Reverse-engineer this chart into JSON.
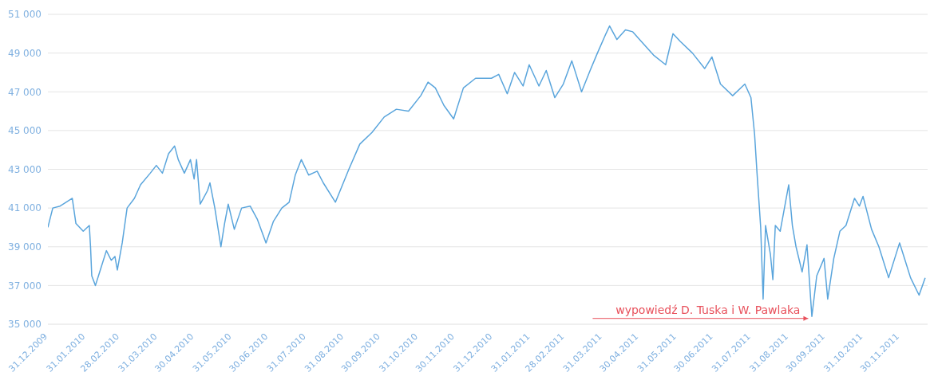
{
  "chart_data": {
    "type": "line",
    "x": [
      "2009-12-31",
      "2010-01-04",
      "2010-01-10",
      "2010-01-20",
      "2010-01-23",
      "2010-01-29",
      "2010-02-03",
      "2010-02-04",
      "2010-02-05",
      "2010-02-08",
      "2010-02-12",
      "2010-02-17",
      "2010-02-21",
      "2010-02-24",
      "2010-02-26",
      "2010-03-02",
      "2010-03-06",
      "2010-03-12",
      "2010-03-17",
      "2010-03-25",
      "2010-03-30",
      "2010-04-04",
      "2010-04-09",
      "2010-04-14",
      "2010-04-17",
      "2010-04-22",
      "2010-04-27",
      "2010-04-30",
      "2010-05-02",
      "2010-05-05",
      "2010-05-11",
      "2010-05-13",
      "2010-05-17",
      "2010-05-22",
      "2010-05-25",
      "2010-05-28",
      "2010-06-02",
      "2010-06-08",
      "2010-06-15",
      "2010-06-21",
      "2010-06-28",
      "2010-07-04",
      "2010-07-11",
      "2010-07-17",
      "2010-07-22",
      "2010-07-27",
      "2010-08-02",
      "2010-08-09",
      "2010-08-14",
      "2010-08-24",
      "2010-09-04",
      "2010-09-13",
      "2010-09-23",
      "2010-10-03",
      "2010-10-13",
      "2010-10-23",
      "2010-11-02",
      "2010-11-08",
      "2010-11-14",
      "2010-11-21",
      "2010-11-29",
      "2010-12-07",
      "2010-12-17",
      "2010-12-30",
      "2011-01-05",
      "2011-01-12",
      "2011-01-18",
      "2011-01-25",
      "2011-01-30",
      "2011-02-07",
      "2011-02-13",
      "2011-02-20",
      "2011-02-27",
      "2011-03-06",
      "2011-03-14",
      "2011-03-21",
      "2011-03-27",
      "2011-04-03",
      "2011-04-06",
      "2011-04-12",
      "2011-04-19",
      "2011-04-25",
      "2011-05-02",
      "2011-05-12",
      "2011-05-22",
      "2011-05-28",
      "2011-06-03",
      "2011-06-13",
      "2011-06-23",
      "2011-06-29",
      "2011-07-06",
      "2011-07-16",
      "2011-07-26",
      "2011-07-31",
      "2011-08-03",
      "2011-08-05",
      "2011-08-08",
      "2011-08-10",
      "2011-08-12",
      "2011-08-16",
      "2011-08-18",
      "2011-08-20",
      "2011-08-24",
      "2011-08-31",
      "2011-09-03",
      "2011-09-06",
      "2011-09-11",
      "2011-09-15",
      "2011-09-19",
      "2011-09-23",
      "2011-09-29",
      "2011-10-02",
      "2011-10-07",
      "2011-10-12",
      "2011-10-17",
      "2011-10-24",
      "2011-10-28",
      "2011-10-31",
      "2011-11-07",
      "2011-11-13",
      "2011-11-21",
      "2011-11-30",
      "2011-12-04",
      "2011-12-09",
      "2011-12-16",
      "2011-12-21"
    ],
    "series": [
      {
        "color": "#5aa5dc",
        "values": [
          40000,
          41000,
          41100,
          41500,
          40200,
          39800,
          40100,
          39000,
          37500,
          37000,
          37800,
          38800,
          38300,
          38500,
          37800,
          39200,
          41000,
          41500,
          42200,
          42800,
          43200,
          42800,
          43800,
          44200,
          43500,
          42800,
          43500,
          42500,
          43500,
          41200,
          41900,
          42300,
          41000,
          39000,
          40200,
          41200,
          39900,
          41000,
          41100,
          40400,
          39200,
          40300,
          41000,
          41300,
          42700,
          43500,
          42700,
          42900,
          42300,
          41300,
          43000,
          44300,
          44900,
          45700,
          46100,
          46000,
          46800,
          47500,
          47200,
          46300,
          45600,
          47200,
          47700,
          47700,
          47900,
          46900,
          48000,
          47300,
          48400,
          47300,
          48100,
          46700,
          47400,
          48600,
          47000,
          48100,
          49000,
          50000,
          50400,
          49700,
          50200,
          50100,
          49600,
          48900,
          48400,
          50000,
          49600,
          49000,
          48200,
          48800,
          47400,
          46800,
          47400,
          46700,
          44800,
          42800,
          40000,
          36300,
          40100,
          38600,
          37300,
          40100,
          39800,
          42200,
          40100,
          39000,
          37700,
          39100,
          35400,
          37500,
          38400,
          36300,
          38400,
          39800,
          40100,
          41500,
          41100,
          41600,
          39900,
          39000,
          37400,
          39200,
          38400,
          37400,
          36500,
          37400
        ]
      }
    ],
    "xlim": [
      "2009-12-31",
      "2011-12-23"
    ],
    "xticks": [
      {
        "value": "2009-12-31",
        "label": "31.12.2009"
      },
      {
        "value": "2010-01-31",
        "label": "31.01.2010"
      },
      {
        "value": "2010-02-28",
        "label": "28.02.2010"
      },
      {
        "value": "2010-03-31",
        "label": "31.03.2010"
      },
      {
        "value": "2010-04-30",
        "label": "30.04.2010"
      },
      {
        "value": "2010-05-31",
        "label": "31.05.2010"
      },
      {
        "value": "2010-06-30",
        "label": "30.06.2010"
      },
      {
        "value": "2010-07-31",
        "label": "31.07.2010"
      },
      {
        "value": "2010-08-31",
        "label": "31.08.2010"
      },
      {
        "value": "2010-09-30",
        "label": "30.09.2010"
      },
      {
        "value": "2010-10-31",
        "label": "31.10.2010"
      },
      {
        "value": "2010-11-30",
        "label": "30.11.2010"
      },
      {
        "value": "2010-12-31",
        "label": "31.12.2010"
      },
      {
        "value": "2011-01-31",
        "label": "31.01.2011"
      },
      {
        "value": "2011-02-28",
        "label": "28.02.2011"
      },
      {
        "value": "2011-03-31",
        "label": "31.03.2011"
      },
      {
        "value": "2011-04-30",
        "label": "30.04.2011"
      },
      {
        "value": "2011-05-31",
        "label": "31.05.2011"
      },
      {
        "value": "2011-06-30",
        "label": "30.06.2011"
      },
      {
        "value": "2011-07-31",
        "label": "31.07.2011"
      },
      {
        "value": "2011-08-31",
        "label": "31.08.2011"
      },
      {
        "value": "2011-09-30",
        "label": "30.09.2011"
      },
      {
        "value": "2011-10-31",
        "label": "31.10.2011"
      },
      {
        "value": "2011-11-30",
        "label": "30.11.2011"
      }
    ],
    "ylim": [
      35000,
      51000
    ],
    "yticks": [
      {
        "value": 35000,
        "label": "35 000"
      },
      {
        "value": 37000,
        "label": "37 000"
      },
      {
        "value": 39000,
        "label": "39 000"
      },
      {
        "value": 41000,
        "label": "41 000"
      },
      {
        "value": 43000,
        "label": "43 000"
      },
      {
        "value": 45000,
        "label": "45 000"
      },
      {
        "value": 47000,
        "label": "47 000"
      },
      {
        "value": 49000,
        "label": "49 000"
      },
      {
        "value": 51000,
        "label": "51 000"
      }
    ],
    "grid": "y",
    "marker": "none",
    "line_style": "solid",
    "annotations": [
      {
        "text": "wypowiedź D. Tuska i W. Pawlaka",
        "x": "2011-09-16",
        "y": 35300
      }
    ]
  }
}
